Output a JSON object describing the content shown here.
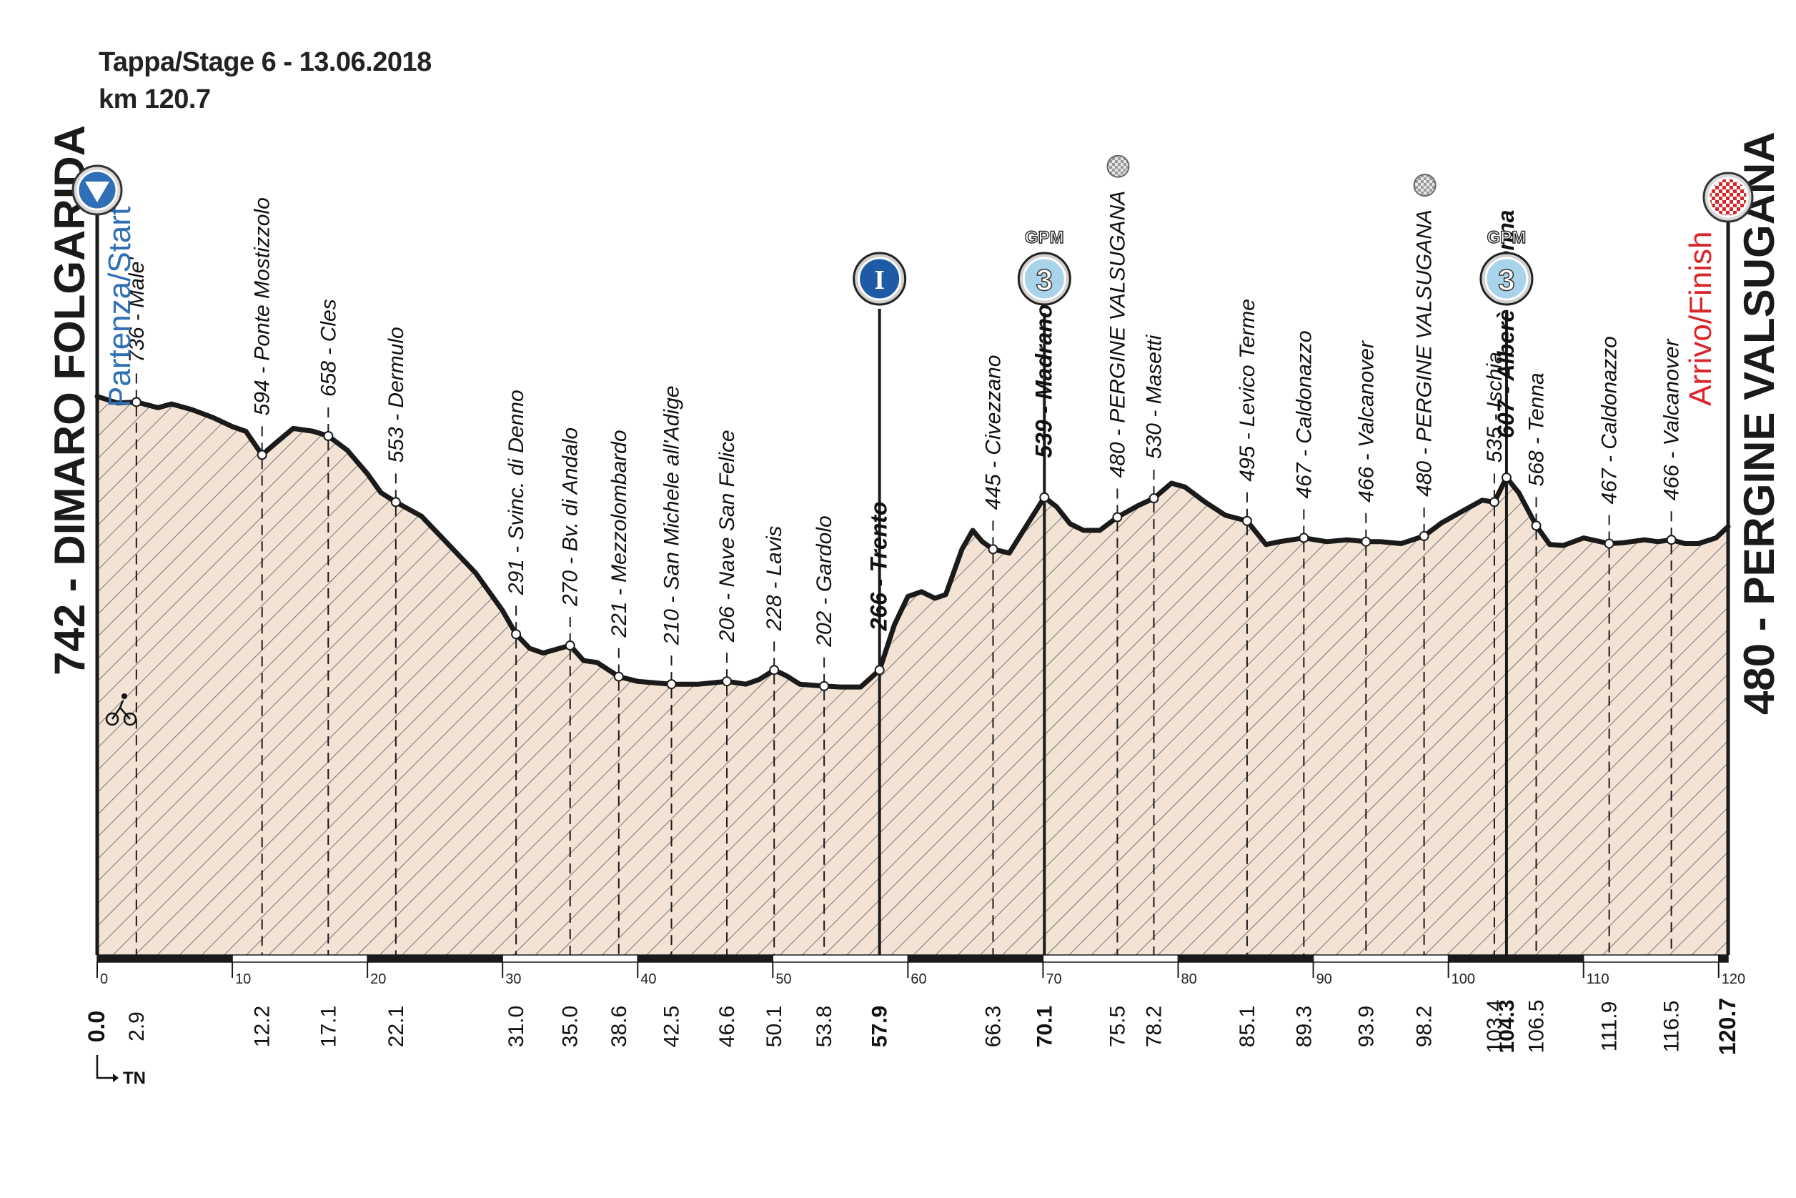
{
  "header": {
    "title": "Tappa/Stage 6 - 13.06.2018",
    "distance": "km 120.7"
  },
  "start": {
    "label": "742 - DIMARO FOLGARIDA",
    "caption": "Partenza/Start"
  },
  "finish": {
    "label": "480 - PERGINE VALSUGANA",
    "caption": "Arrivo/Finish"
  },
  "markers": {
    "intermediate": "I",
    "gpm_label": "GPM",
    "gpm_cat": "3"
  },
  "legend": {
    "province": "TN"
  },
  "colors": {
    "profile_fill": "#f3e3d5",
    "hatch": "#5a5a5a",
    "outline": "#1a1a1a",
    "start_blue": "#2e6fb5",
    "finish_red": "#d9262a",
    "intermediate_blue": "#1f5aa6",
    "gpm_light_blue": "#a9d3ea"
  },
  "chart_data": {
    "type": "area",
    "xlim": [
      0,
      120.7
    ],
    "ylim": [
      150,
      900
    ],
    "x_ticks": [
      0,
      10,
      20,
      30,
      40,
      50,
      60,
      70,
      80,
      90,
      100,
      110,
      120
    ],
    "x_tick_labels": [
      "0",
      "10",
      "20",
      "30",
      "40",
      "50",
      "60",
      "70",
      "80",
      "90",
      "100",
      "110",
      "120"
    ],
    "profile": [
      [
        0,
        742
      ],
      [
        1.5,
        735
      ],
      [
        2.9,
        736
      ],
      [
        4.5,
        730
      ],
      [
        5.5,
        734
      ],
      [
        7,
        728
      ],
      [
        8.5,
        720
      ],
      [
        10,
        710
      ],
      [
        11,
        705
      ],
      [
        12.2,
        680
      ],
      [
        13,
        690
      ],
      [
        14.5,
        708
      ],
      [
        16,
        705
      ],
      [
        17.1,
        700
      ],
      [
        18.5,
        685
      ],
      [
        20,
        660
      ],
      [
        21,
        640
      ],
      [
        22.1,
        630
      ],
      [
        24,
        615
      ],
      [
        26,
        585
      ],
      [
        28,
        555
      ],
      [
        30,
        515
      ],
      [
        31,
        490
      ],
      [
        32,
        475
      ],
      [
        33,
        470
      ],
      [
        34,
        474
      ],
      [
        35,
        478
      ],
      [
        36,
        462
      ],
      [
        37,
        460
      ],
      [
        38.6,
        445
      ],
      [
        40,
        440
      ],
      [
        42.5,
        437
      ],
      [
        44.5,
        437
      ],
      [
        46.6,
        440
      ],
      [
        48,
        437
      ],
      [
        49,
        442
      ],
      [
        50.1,
        452
      ],
      [
        51,
        446
      ],
      [
        52,
        437
      ],
      [
        53.8,
        435
      ],
      [
        55,
        434
      ],
      [
        56.5,
        434
      ],
      [
        57.9,
        452
      ],
      [
        59,
        500
      ],
      [
        60,
        530
      ],
      [
        61,
        535
      ],
      [
        62,
        528
      ],
      [
        62.8,
        532
      ],
      [
        64,
        580
      ],
      [
        64.8,
        600
      ],
      [
        65.5,
        588
      ],
      [
        66.3,
        580
      ],
      [
        67.5,
        576
      ],
      [
        69,
        610
      ],
      [
        70.1,
        635
      ],
      [
        71,
        625
      ],
      [
        72,
        607
      ],
      [
        73,
        600
      ],
      [
        74.2,
        600
      ],
      [
        75.5,
        614
      ],
      [
        77,
        626
      ],
      [
        78.2,
        634
      ],
      [
        79.5,
        650
      ],
      [
        80.5,
        646
      ],
      [
        82,
        630
      ],
      [
        83.5,
        616
      ],
      [
        85.1,
        610
      ],
      [
        86.5,
        585
      ],
      [
        87.5,
        588
      ],
      [
        89.3,
        592
      ],
      [
        91,
        588
      ],
      [
        92.5,
        590
      ],
      [
        93.9,
        588
      ],
      [
        95,
        588
      ],
      [
        96.5,
        586
      ],
      [
        98.2,
        594
      ],
      [
        99.5,
        608
      ],
      [
        101,
        620
      ],
      [
        102.5,
        632
      ],
      [
        103.4,
        630
      ],
      [
        104.3,
        656
      ],
      [
        105.2,
        640
      ],
      [
        106.5,
        605
      ],
      [
        107.5,
        585
      ],
      [
        108.5,
        584
      ],
      [
        110,
        592
      ],
      [
        111.9,
        586
      ],
      [
        113,
        587
      ],
      [
        114.5,
        590
      ],
      [
        115.5,
        588
      ],
      [
        116.5,
        590
      ],
      [
        117.5,
        586
      ],
      [
        118.5,
        586
      ],
      [
        119.8,
        592
      ],
      [
        120.7,
        604
      ]
    ],
    "waypoints": [
      {
        "km": "2.9",
        "x": 2.9,
        "alt": 736,
        "label": "736 - Male'"
      },
      {
        "km": "12.2",
        "x": 12.2,
        "alt": 680,
        "label": "594 - Ponte Mostizzolo"
      },
      {
        "km": "17.1",
        "x": 17.1,
        "alt": 700,
        "label": "658 - Cles"
      },
      {
        "km": "22.1",
        "x": 22.1,
        "alt": 630,
        "label": "553 - Dermulo"
      },
      {
        "km": "31.0",
        "x": 31.0,
        "alt": 490,
        "label": "291 - Svinc. di Denno"
      },
      {
        "km": "35.0",
        "x": 35.0,
        "alt": 478,
        "label": "270 - Bv. di Andalo"
      },
      {
        "km": "38.6",
        "x": 38.6,
        "alt": 445,
        "label": "221 - Mezzolombardo"
      },
      {
        "km": "42.5",
        "x": 42.5,
        "alt": 437,
        "label": "210 - San Michele all'Adige"
      },
      {
        "km": "46.6",
        "x": 46.6,
        "alt": 440,
        "label": "206 - Nave San Felice"
      },
      {
        "km": "50.1",
        "x": 50.1,
        "alt": 452,
        "label": "228 - Lavis"
      },
      {
        "km": "53.8",
        "x": 53.8,
        "alt": 435,
        "label": "202 - Gardolo"
      },
      {
        "km": "57.9",
        "x": 57.9,
        "alt": 452,
        "label": "266 - Trento",
        "bold": true,
        "intermediate": true
      },
      {
        "km": "66.3",
        "x": 66.3,
        "alt": 580,
        "label": "445 - Civezzano"
      },
      {
        "km": "70.1",
        "x": 70.1,
        "alt": 635,
        "label": "539 - Madrano",
        "bold": true,
        "gpm": true
      },
      {
        "km": "75.5",
        "x": 75.5,
        "alt": 614,
        "label": "480 - PERGINE VALSUGANA",
        "sprint": true
      },
      {
        "km": "78.2",
        "x": 78.2,
        "alt": 634,
        "label": "530 - Masetti"
      },
      {
        "km": "85.1",
        "x": 85.1,
        "alt": 610,
        "label": "495 - Levico Terme"
      },
      {
        "km": "89.3",
        "x": 89.3,
        "alt": 592,
        "label": "467 - Caldonazzo"
      },
      {
        "km": "93.9",
        "x": 93.9,
        "alt": 588,
        "label": "466 - Valcanover"
      },
      {
        "km": "98.2",
        "x": 98.2,
        "alt": 594,
        "label": "480 - PERGINE VALSUGANA",
        "sprint": true
      },
      {
        "km": "103.4",
        "x": 103.4,
        "alt": 630,
        "label": "535 - Ischia"
      },
      {
        "km": "104.3",
        "x": 104.3,
        "alt": 656,
        "label": "607 - Alberè di Tenna",
        "bold": true,
        "gpm": true
      },
      {
        "km": "106.5",
        "x": 106.5,
        "alt": 605,
        "label": "568 - Tenna"
      },
      {
        "km": "111.9",
        "x": 111.9,
        "alt": 586,
        "label": "467 - Caldonazzo"
      },
      {
        "km": "116.5",
        "x": 116.5,
        "alt": 590,
        "label": "466 - Valcanover"
      }
    ],
    "start_km": "0.0",
    "finish_km": "120.7"
  }
}
